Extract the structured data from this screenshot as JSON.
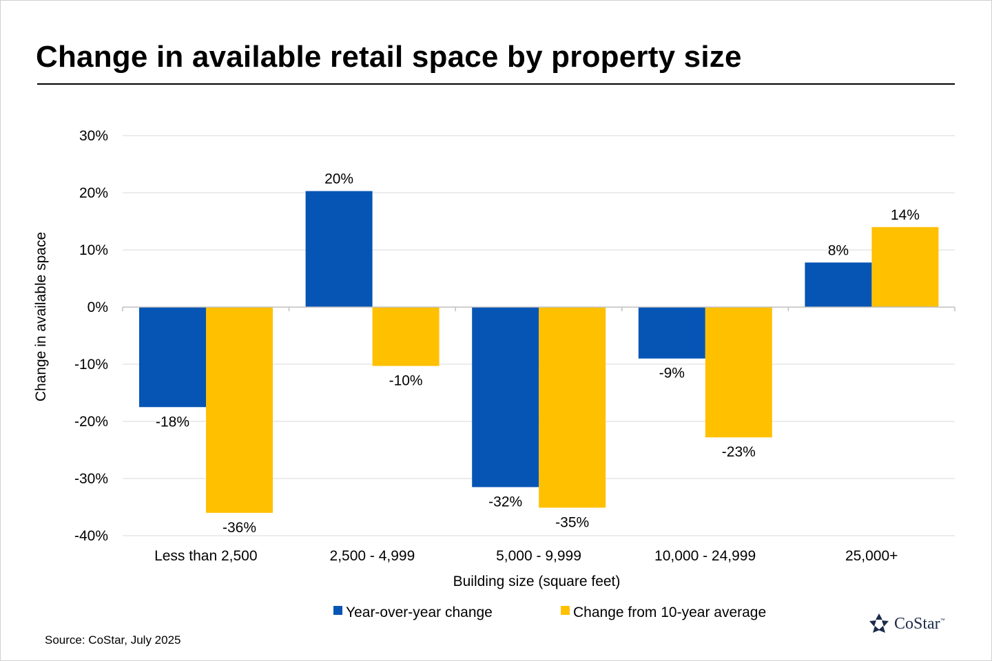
{
  "chart_data": {
    "type": "bar",
    "title": "Change in available retail space by property size",
    "xlabel": "Building size (square feet)",
    "ylabel": "Change in available space",
    "ylim": [
      -40,
      30
    ],
    "yticks": [
      30,
      20,
      10,
      0,
      -10,
      -20,
      -30,
      -40
    ],
    "ytick_labels": [
      "30%",
      "20%",
      "10%",
      "0%",
      "-10%",
      "-20%",
      "-30%",
      "-40%"
    ],
    "categories": [
      "Less than 2,500",
      "2,500 - 4,999",
      "5,000 - 9,999",
      "10,000 - 24,999",
      "25,000+"
    ],
    "series": [
      {
        "name": "Year-over-year change",
        "color": "#0655B5",
        "values": [
          -17.5,
          20.3,
          -31.5,
          -9.0,
          7.8
        ],
        "labels": [
          "-18%",
          "20%",
          "-32%",
          "-9%",
          "8%"
        ]
      },
      {
        "name": "Change from 10-year average",
        "color": "#FFC000",
        "values": [
          -36.0,
          -10.3,
          -35.1,
          -22.8,
          14.0
        ],
        "labels": [
          "-36%",
          "-10%",
          "-35%",
          "-23%",
          "14%"
        ]
      }
    ],
    "grid": true,
    "legend": "bottom"
  },
  "footer": {
    "source": "Source: CoStar, July 2025",
    "logo_text": "CoStar",
    "logo_tm": "™"
  },
  "colors": {
    "grid": "#d9d9d9",
    "axis": "#bfbfbf",
    "logo": "#1c2b4a"
  }
}
